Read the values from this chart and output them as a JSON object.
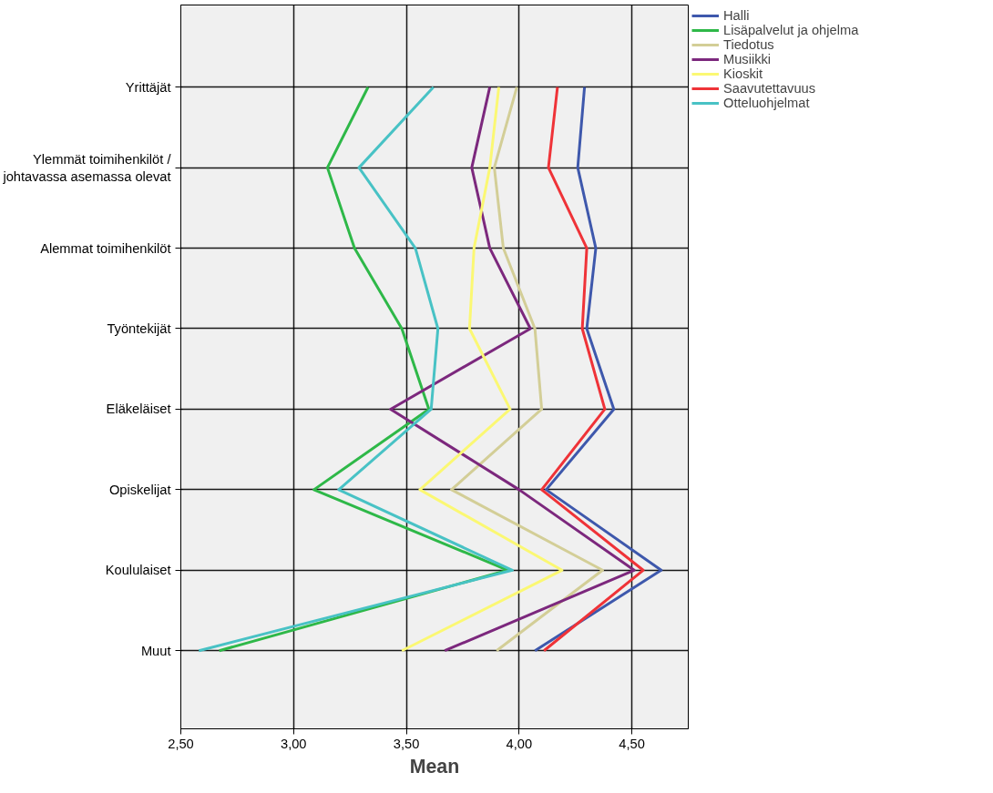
{
  "chart_data": {
    "type": "line",
    "orientation": "horizontal",
    "xlabel": "Mean",
    "categories": [
      "Yrittäjät",
      "Ylemmät toimihenkilöt /\njohtavassa asemassa olevat",
      "Alemmat toimihenkilöt",
      "Työntekijät",
      "Eläkeläiset",
      "Opiskelijat",
      "Koululaiset",
      "Muut"
    ],
    "series": [
      {
        "name": "Halli",
        "color": "#3e58ac",
        "values": [
          4.29,
          4.26,
          4.34,
          4.3,
          4.42,
          4.12,
          4.63,
          4.07
        ]
      },
      {
        "name": "Lisäpalvelut ja ohjelma",
        "color": "#2eb848",
        "values": [
          3.33,
          3.15,
          3.27,
          3.48,
          3.6,
          3.09,
          3.95,
          2.67
        ]
      },
      {
        "name": "Tiedotus",
        "color": "#d3ce97",
        "values": [
          3.99,
          3.89,
          3.93,
          4.07,
          4.1,
          3.7,
          4.37,
          3.9
        ]
      },
      {
        "name": "Musiikki",
        "color": "#7c287d",
        "values": [
          3.87,
          3.79,
          3.87,
          4.05,
          3.43,
          4.0,
          4.51,
          3.67
        ]
      },
      {
        "name": "Kioskit",
        "color": "#fbf873",
        "values": [
          3.91,
          3.87,
          3.8,
          3.78,
          3.96,
          3.56,
          4.19,
          3.48
        ]
      },
      {
        "name": "Saavutettavuus",
        "color": "#ef3338",
        "values": [
          4.17,
          4.13,
          4.3,
          4.28,
          4.38,
          4.1,
          4.55,
          4.11
        ]
      },
      {
        "name": "Otteluohjelmat",
        "color": "#48c2c5",
        "values": [
          3.62,
          3.29,
          3.54,
          3.64,
          3.61,
          3.2,
          3.97,
          2.58
        ]
      }
    ],
    "xlim": [
      2.5,
      4.75
    ],
    "xticks": [
      {
        "value": 2.5,
        "label": "2,50"
      },
      {
        "value": 3.0,
        "label": "3,00"
      },
      {
        "value": 3.5,
        "label": "3,50"
      },
      {
        "value": 4.0,
        "label": "4,00"
      },
      {
        "value": 4.5,
        "label": "4,50"
      }
    ],
    "grid": true,
    "legend": "top right",
    "line_style": "solid",
    "marker": "none"
  }
}
